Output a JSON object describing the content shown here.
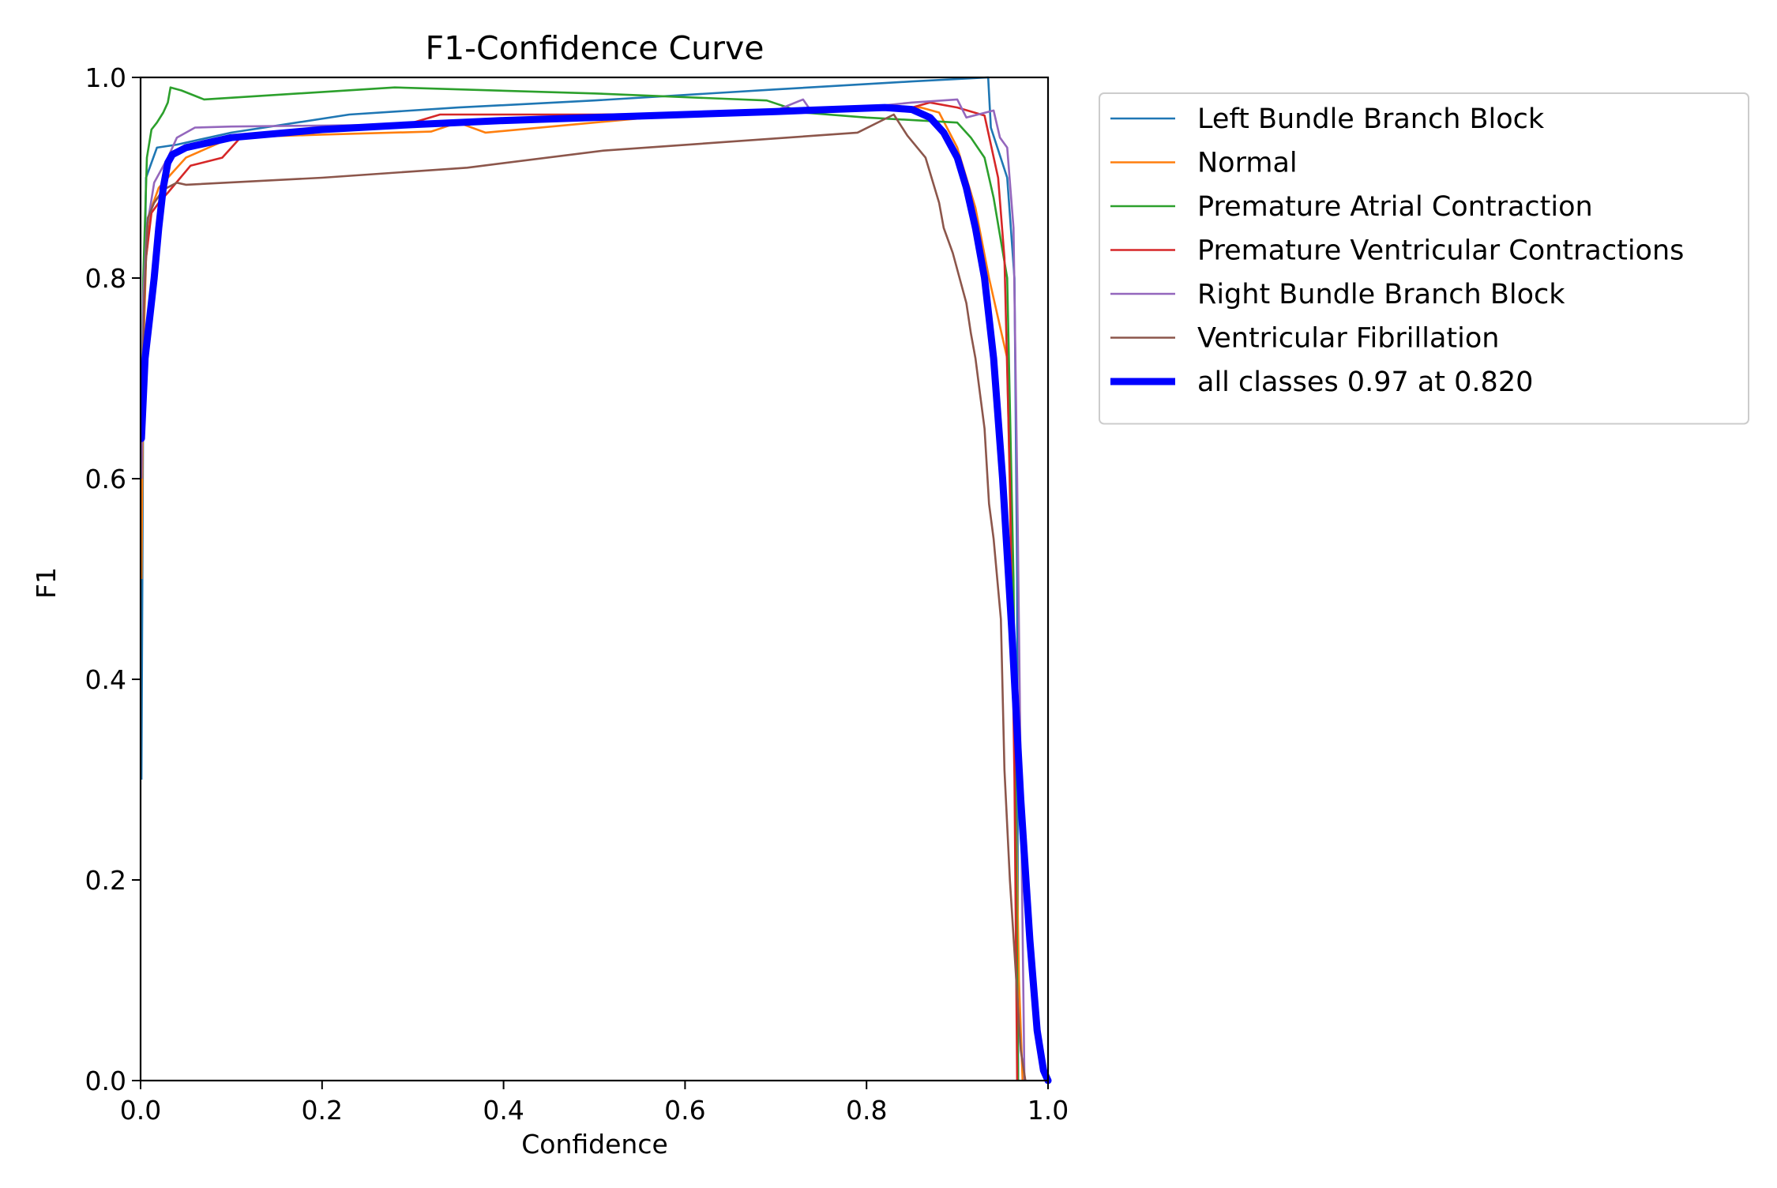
{
  "chart_data": {
    "type": "line",
    "title": "F1-Confidence Curve",
    "xlabel": "Confidence",
    "ylabel": "F1",
    "xlim": [
      0.0,
      1.0
    ],
    "ylim": [
      0.0,
      1.0
    ],
    "xticks": [
      "0.0",
      "0.2",
      "0.4",
      "0.6",
      "0.8",
      "1.0"
    ],
    "yticks": [
      "0.0",
      "0.2",
      "0.4",
      "0.6",
      "0.8",
      "1.0"
    ],
    "grid": false,
    "legend_position": "outside upper right",
    "series": [
      {
        "name": "Left Bundle Branch Block",
        "color": "#1f77b4",
        "points": [
          [
            0.001,
            0.3
          ],
          [
            0.003,
            0.7
          ],
          [
            0.006,
            0.9
          ],
          [
            0.018,
            0.93
          ],
          [
            0.04,
            0.933
          ],
          [
            0.1,
            0.945
          ],
          [
            0.23,
            0.963
          ],
          [
            0.35,
            0.97
          ],
          [
            0.5,
            0.977
          ],
          [
            0.7,
            0.988
          ],
          [
            0.85,
            0.996
          ],
          [
            0.934,
            1.0
          ],
          [
            0.937,
            0.95
          ],
          [
            0.955,
            0.9
          ],
          [
            0.963,
            0.8
          ],
          [
            0.966,
            0.5
          ],
          [
            0.967,
            0.0
          ]
        ]
      },
      {
        "name": "Normal",
        "color": "#ff7f0e",
        "points": [
          [
            0.001,
            0.5
          ],
          [
            0.003,
            0.72
          ],
          [
            0.006,
            0.82
          ],
          [
            0.012,
            0.87
          ],
          [
            0.02,
            0.89
          ],
          [
            0.05,
            0.92
          ],
          [
            0.1,
            0.94
          ],
          [
            0.2,
            0.943
          ],
          [
            0.32,
            0.946
          ],
          [
            0.35,
            0.955
          ],
          [
            0.38,
            0.945
          ],
          [
            0.5,
            0.955
          ],
          [
            0.62,
            0.965
          ],
          [
            0.75,
            0.967
          ],
          [
            0.86,
            0.97
          ],
          [
            0.88,
            0.965
          ],
          [
            0.9,
            0.93
          ],
          [
            0.92,
            0.87
          ],
          [
            0.935,
            0.8
          ],
          [
            0.955,
            0.72
          ],
          [
            0.962,
            0.4
          ],
          [
            0.968,
            0.1
          ],
          [
            0.972,
            0.0
          ]
        ]
      },
      {
        "name": "Premature Atrial Contraction",
        "color": "#2ca02c",
        "points": [
          [
            0.001,
            0.6
          ],
          [
            0.003,
            0.8
          ],
          [
            0.007,
            0.92
          ],
          [
            0.012,
            0.948
          ],
          [
            0.018,
            0.955
          ],
          [
            0.025,
            0.965
          ],
          [
            0.03,
            0.975
          ],
          [
            0.033,
            0.99
          ],
          [
            0.045,
            0.987
          ],
          [
            0.07,
            0.978
          ],
          [
            0.28,
            0.99
          ],
          [
            0.5,
            0.984
          ],
          [
            0.69,
            0.977
          ],
          [
            0.73,
            0.965
          ],
          [
            0.8,
            0.96
          ],
          [
            0.9,
            0.955
          ],
          [
            0.915,
            0.94
          ],
          [
            0.93,
            0.92
          ],
          [
            0.94,
            0.88
          ],
          [
            0.955,
            0.8
          ],
          [
            0.962,
            0.5
          ],
          [
            0.965,
            0.2
          ],
          [
            0.967,
            0.0
          ]
        ]
      },
      {
        "name": "Premature Ventricular Contractions",
        "color": "#d62728",
        "points": [
          [
            0.001,
            0.6
          ],
          [
            0.003,
            0.75
          ],
          [
            0.006,
            0.82
          ],
          [
            0.012,
            0.865
          ],
          [
            0.02,
            0.875
          ],
          [
            0.03,
            0.885
          ],
          [
            0.055,
            0.912
          ],
          [
            0.09,
            0.92
          ],
          [
            0.11,
            0.94
          ],
          [
            0.2,
            0.95
          ],
          [
            0.3,
            0.955
          ],
          [
            0.33,
            0.963
          ],
          [
            0.5,
            0.963
          ],
          [
            0.7,
            0.965
          ],
          [
            0.85,
            0.97
          ],
          [
            0.87,
            0.975
          ],
          [
            0.9,
            0.97
          ],
          [
            0.93,
            0.962
          ],
          [
            0.945,
            0.9
          ],
          [
            0.952,
            0.82
          ],
          [
            0.958,
            0.6
          ],
          [
            0.963,
            0.3
          ],
          [
            0.966,
            0.0
          ]
        ]
      },
      {
        "name": "Right Bundle Branch Block",
        "color": "#9467bd",
        "points": [
          [
            0.001,
            0.6
          ],
          [
            0.003,
            0.78
          ],
          [
            0.007,
            0.85
          ],
          [
            0.015,
            0.895
          ],
          [
            0.03,
            0.92
          ],
          [
            0.04,
            0.94
          ],
          [
            0.06,
            0.95
          ],
          [
            0.1,
            0.951
          ],
          [
            0.3,
            0.953
          ],
          [
            0.5,
            0.958
          ],
          [
            0.7,
            0.967
          ],
          [
            0.73,
            0.978
          ],
          [
            0.74,
            0.965
          ],
          [
            0.85,
            0.975
          ],
          [
            0.9,
            0.978
          ],
          [
            0.91,
            0.96
          ],
          [
            0.94,
            0.967
          ],
          [
            0.947,
            0.94
          ],
          [
            0.955,
            0.93
          ],
          [
            0.962,
            0.85
          ],
          [
            0.966,
            0.6
          ],
          [
            0.97,
            0.3
          ],
          [
            0.974,
            0.0
          ]
        ]
      },
      {
        "name": "Ventricular Fibrillation",
        "color": "#8c564b",
        "points": [
          [
            0.001,
            0.65
          ],
          [
            0.004,
            0.78
          ],
          [
            0.008,
            0.86
          ],
          [
            0.015,
            0.875
          ],
          [
            0.025,
            0.888
          ],
          [
            0.04,
            0.895
          ],
          [
            0.05,
            0.893
          ],
          [
            0.2,
            0.9
          ],
          [
            0.36,
            0.91
          ],
          [
            0.51,
            0.927
          ],
          [
            0.79,
            0.945
          ],
          [
            0.83,
            0.963
          ],
          [
            0.845,
            0.942
          ],
          [
            0.865,
            0.92
          ],
          [
            0.88,
            0.875
          ],
          [
            0.885,
            0.85
          ],
          [
            0.895,
            0.825
          ],
          [
            0.91,
            0.775
          ],
          [
            0.915,
            0.745
          ],
          [
            0.92,
            0.72
          ],
          [
            0.925,
            0.685
          ],
          [
            0.93,
            0.65
          ],
          [
            0.935,
            0.575
          ],
          [
            0.94,
            0.54
          ],
          [
            0.948,
            0.46
          ],
          [
            0.952,
            0.31
          ],
          [
            0.958,
            0.2
          ],
          [
            0.965,
            0.1
          ],
          [
            0.97,
            0.03
          ],
          [
            0.975,
            0.0
          ]
        ]
      },
      {
        "name": "all classes 0.97 at 0.820",
        "color": "#0000ff",
        "thick": true,
        "points": [
          [
            0.001,
            0.64
          ],
          [
            0.005,
            0.72
          ],
          [
            0.01,
            0.76
          ],
          [
            0.015,
            0.8
          ],
          [
            0.02,
            0.85
          ],
          [
            0.025,
            0.89
          ],
          [
            0.03,
            0.915
          ],
          [
            0.035,
            0.923
          ],
          [
            0.05,
            0.93
          ],
          [
            0.1,
            0.94
          ],
          [
            0.2,
            0.948
          ],
          [
            0.3,
            0.953
          ],
          [
            0.4,
            0.957
          ],
          [
            0.5,
            0.96
          ],
          [
            0.6,
            0.963
          ],
          [
            0.7,
            0.966
          ],
          [
            0.76,
            0.968
          ],
          [
            0.82,
            0.97
          ],
          [
            0.85,
            0.968
          ],
          [
            0.87,
            0.96
          ],
          [
            0.885,
            0.945
          ],
          [
            0.9,
            0.92
          ],
          [
            0.91,
            0.89
          ],
          [
            0.92,
            0.85
          ],
          [
            0.93,
            0.8
          ],
          [
            0.94,
            0.72
          ],
          [
            0.95,
            0.6
          ],
          [
            0.96,
            0.45
          ],
          [
            0.97,
            0.28
          ],
          [
            0.98,
            0.14
          ],
          [
            0.988,
            0.05
          ],
          [
            0.995,
            0.01
          ],
          [
            1.0,
            0.0
          ]
        ]
      }
    ]
  }
}
